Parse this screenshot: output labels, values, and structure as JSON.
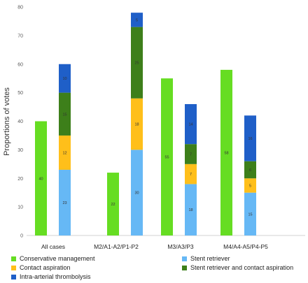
{
  "chart_data": {
    "type": "bar",
    "ylabel": "Proportions of votes",
    "ylim": [
      0,
      80
    ],
    "yticks": [
      0,
      10,
      20,
      30,
      40,
      50,
      60,
      70,
      80
    ],
    "categories": [
      "All cases",
      "M2/A1-A2/P1-P2",
      "M3/A3/P3",
      "M4/A4-A5/P4-P5"
    ],
    "conservative": {
      "name": "Conservative management",
      "color": "#66dd22",
      "values": [
        40,
        22,
        55,
        58
      ],
      "labels": [
        "40",
        "22",
        "55",
        "58"
      ]
    },
    "stacked_series": [
      {
        "name": "Stent retriever",
        "color": "#66b8f5",
        "values": [
          23,
          30,
          18,
          15
        ],
        "labels": [
          "23",
          "30",
          "18",
          "15"
        ]
      },
      {
        "name": "Contact aspiration",
        "color": "#ffbf1a",
        "values": [
          12,
          18,
          7,
          5
        ],
        "labels": [
          "12",
          "18",
          "7",
          "5"
        ]
      },
      {
        "name": "Stent retriever and contact aspiration",
        "color": "#3d7f1a",
        "values": [
          15,
          25,
          7,
          6
        ],
        "labels": [
          "15",
          "25",
          "7",
          "6"
        ]
      },
      {
        "name": "Intra-arterial thrombolysis",
        "color": "#1f5fc8",
        "values": [
          10,
          5,
          14,
          16
        ],
        "labels": [
          "10",
          "5",
          "14",
          "16"
        ]
      }
    ],
    "legend": {
      "placement": "bottom",
      "items": [
        {
          "name": "Conservative management",
          "color": "#66dd22"
        },
        {
          "name": "Stent retriever",
          "color": "#66b8f5"
        },
        {
          "name": "Contact aspiration",
          "color": "#ffbf1a"
        },
        {
          "name": "Stent retriever and contact aspiration",
          "color": "#3d7f1a"
        },
        {
          "name": "Intra-arterial thrombolysis",
          "color": "#1f5fc8"
        }
      ]
    },
    "grid": false
  }
}
